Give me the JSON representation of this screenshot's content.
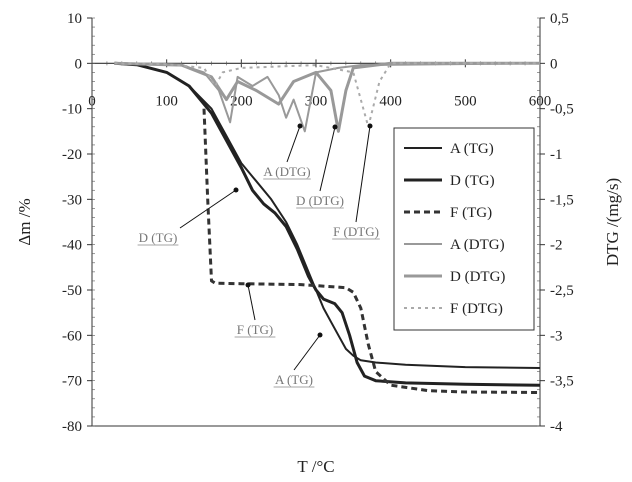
{
  "chart_data": {
    "type": "line",
    "xlabel": "T /°C",
    "ylabel_left": "Δm /%",
    "ylabel_right": "DTG /(mg/s)",
    "x_range": [
      0,
      600
    ],
    "y_left_range": [
      -80,
      10
    ],
    "y_right_range": [
      -4,
      0.5
    ],
    "x_ticks": [
      "0",
      "100",
      "200",
      "300",
      "400",
      "500",
      "600"
    ],
    "y_left_ticks": [
      "10",
      "0",
      "-10",
      "-20",
      "-30",
      "-40",
      "-50",
      "-60",
      "-70",
      "-80"
    ],
    "y_right_ticks": [
      "0,5",
      "0",
      "-0,5",
      "-1",
      "-1,5",
      "-2",
      "-2,5",
      "-3",
      "-3,5",
      "-4"
    ],
    "legend_position": "right",
    "grid": false,
    "series": [
      {
        "name": "A (TG)",
        "axis": "left",
        "color": "#222222",
        "width": 2,
        "dash": "",
        "points": [
          [
            30,
            0
          ],
          [
            60,
            -0.3
          ],
          [
            100,
            -2
          ],
          [
            130,
            -5
          ],
          [
            160,
            -10
          ],
          [
            180,
            -16
          ],
          [
            200,
            -22
          ],
          [
            220,
            -26
          ],
          [
            240,
            -30
          ],
          [
            260,
            -35
          ],
          [
            275,
            -40
          ],
          [
            290,
            -46
          ],
          [
            300,
            -50
          ],
          [
            310,
            -54
          ],
          [
            320,
            -57
          ],
          [
            330,
            -60
          ],
          [
            340,
            -63
          ],
          [
            350,
            -64.5
          ],
          [
            360,
            -65.5
          ],
          [
            380,
            -66
          ],
          [
            420,
            -66.5
          ],
          [
            500,
            -67
          ],
          [
            600,
            -67.2
          ]
        ]
      },
      {
        "name": "D (TG)",
        "axis": "left",
        "color": "#222222",
        "width": 3,
        "dash": "",
        "points": [
          [
            30,
            0
          ],
          [
            60,
            -0.3
          ],
          [
            100,
            -2
          ],
          [
            130,
            -5
          ],
          [
            160,
            -11
          ],
          [
            180,
            -17
          ],
          [
            200,
            -23
          ],
          [
            215,
            -28
          ],
          [
            230,
            -31
          ],
          [
            245,
            -33
          ],
          [
            260,
            -36
          ],
          [
            275,
            -41
          ],
          [
            290,
            -47
          ],
          [
            300,
            -50
          ],
          [
            310,
            -52
          ],
          [
            325,
            -53
          ],
          [
            335,
            -55
          ],
          [
            345,
            -60
          ],
          [
            355,
            -66
          ],
          [
            365,
            -69
          ],
          [
            380,
            -70
          ],
          [
            420,
            -70.5
          ],
          [
            500,
            -70.8
          ],
          [
            600,
            -71
          ]
        ]
      },
      {
        "name": "F (TG)",
        "axis": "left",
        "color": "#333333",
        "width": 3,
        "dash": "6,4",
        "points": [
          [
            150,
            -10
          ],
          [
            155,
            -30
          ],
          [
            160,
            -48
          ],
          [
            165,
            -48.5
          ],
          [
            200,
            -48.6
          ],
          [
            280,
            -48.8
          ],
          [
            340,
            -49.5
          ],
          [
            350,
            -50.5
          ],
          [
            360,
            -54
          ],
          [
            370,
            -62
          ],
          [
            380,
            -68
          ],
          [
            400,
            -71
          ],
          [
            450,
            -72.2
          ],
          [
            500,
            -72.5
          ],
          [
            600,
            -72.6
          ]
        ]
      },
      {
        "name": "A (DTG)",
        "axis": "right",
        "color": "#999999",
        "width": 2,
        "dash": "",
        "points": [
          [
            30,
            0
          ],
          [
            120,
            -0.02
          ],
          [
            150,
            -0.1
          ],
          [
            170,
            -0.3
          ],
          [
            185,
            -0.65
          ],
          [
            195,
            -0.15
          ],
          [
            215,
            -0.25
          ],
          [
            235,
            -0.15
          ],
          [
            250,
            -0.35
          ],
          [
            260,
            -0.6
          ],
          [
            270,
            -0.4
          ],
          [
            285,
            -0.75
          ],
          [
            300,
            -0.1
          ],
          [
            330,
            -0.05
          ],
          [
            360,
            -0.02
          ],
          [
            600,
            0
          ]
        ]
      },
      {
        "name": "D (DTG)",
        "axis": "right",
        "color": "#999999",
        "width": 3,
        "dash": "",
        "points": [
          [
            30,
            0
          ],
          [
            120,
            -0.02
          ],
          [
            160,
            -0.15
          ],
          [
            180,
            -0.4
          ],
          [
            195,
            -0.2
          ],
          [
            220,
            -0.3
          ],
          [
            250,
            -0.45
          ],
          [
            270,
            -0.2
          ],
          [
            300,
            -0.1
          ],
          [
            320,
            -0.3
          ],
          [
            330,
            -0.75
          ],
          [
            340,
            -0.3
          ],
          [
            350,
            -0.05
          ],
          [
            400,
            0
          ],
          [
            600,
            0
          ]
        ]
      },
      {
        "name": "F (DTG)",
        "axis": "right",
        "color": "#aaaaaa",
        "width": 2,
        "dash": "3,4",
        "points": [
          [
            30,
            0
          ],
          [
            100,
            -0.01
          ],
          [
            150,
            -0.05
          ],
          [
            165,
            -0.25
          ],
          [
            175,
            -0.1
          ],
          [
            200,
            -0.05
          ],
          [
            300,
            -0.02
          ],
          [
            350,
            -0.1
          ],
          [
            370,
            -0.7
          ],
          [
            385,
            -0.2
          ],
          [
            400,
            0
          ],
          [
            600,
            0
          ]
        ]
      }
    ],
    "annotations": [
      {
        "text": "A (DTG)"
      },
      {
        "text": "D (DTG)"
      },
      {
        "text": "F (DTG)"
      },
      {
        "text": "D (TG)"
      },
      {
        "text": "F (TG)"
      },
      {
        "text": "A (TG)"
      }
    ]
  }
}
